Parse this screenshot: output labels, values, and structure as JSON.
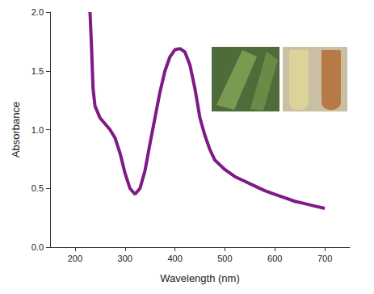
{
  "chart_data": {
    "type": "line",
    "x_label": "Wavelength (nm)",
    "y_label": "Absorbance",
    "x": [
      230,
      233,
      236,
      240,
      250,
      260,
      270,
      280,
      290,
      300,
      310,
      320,
      330,
      340,
      350,
      360,
      370,
      380,
      390,
      400,
      410,
      420,
      430,
      440,
      450,
      460,
      470,
      480,
      490,
      500,
      520,
      540,
      560,
      580,
      600,
      620,
      640,
      660,
      680,
      700
    ],
    "values": [
      2.0,
      1.7,
      1.35,
      1.2,
      1.1,
      1.05,
      1.0,
      0.93,
      0.8,
      0.63,
      0.5,
      0.45,
      0.5,
      0.65,
      0.88,
      1.1,
      1.32,
      1.5,
      1.62,
      1.68,
      1.69,
      1.66,
      1.55,
      1.35,
      1.1,
      0.95,
      0.83,
      0.74,
      0.7,
      0.66,
      0.6,
      0.56,
      0.52,
      0.48,
      0.45,
      0.42,
      0.39,
      0.37,
      0.35,
      0.33
    ],
    "color": "#7f1a86",
    "xlim": [
      150,
      750
    ],
    "xticks": [
      200,
      300,
      400,
      500,
      600,
      700
    ],
    "ylim": [
      0,
      2.0
    ],
    "yticks": [
      {
        "value": 0,
        "label": "0.0"
      },
      {
        "value": 0.5,
        "label": "0.5"
      },
      {
        "value": 1.0,
        "label": "1.0"
      },
      {
        "value": 1.5,
        "label": "1.5"
      },
      {
        "value": 2.0,
        "label": "2.0"
      }
    ],
    "grid": false
  }
}
